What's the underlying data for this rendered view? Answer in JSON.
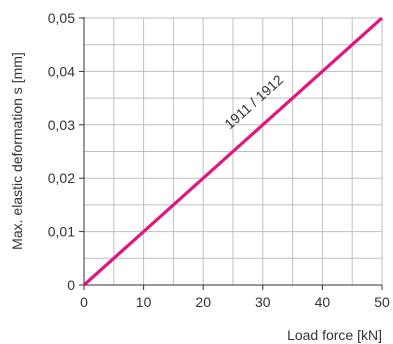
{
  "chart_data": {
    "type": "line",
    "title": "",
    "xlabel": "Load force [kN]",
    "ylabel": "Max. elastic deformation s [mm]",
    "xlim": [
      0,
      50
    ],
    "ylim": [
      0,
      0.05
    ],
    "x_ticks": [
      0,
      10,
      20,
      30,
      40,
      50
    ],
    "x_tick_labels": [
      "0",
      "10",
      "20",
      "30",
      "40",
      "50"
    ],
    "y_ticks": [
      0,
      0.01,
      0.02,
      0.03,
      0.04,
      0.05
    ],
    "y_tick_labels": [
      "0",
      "0,01",
      "0,02",
      "0,03",
      "0,04",
      "0,05"
    ],
    "x_minor_step": 5,
    "y_minor_step": 0.005,
    "grid": true,
    "series": [
      {
        "label": "1911 / 1912",
        "color": "#e0157e",
        "x": [
          0,
          50
        ],
        "y": [
          0,
          0.05
        ]
      }
    ]
  }
}
